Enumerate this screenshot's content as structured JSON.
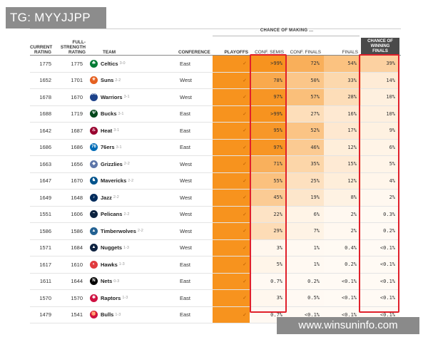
{
  "overlay_tag": "TG: MYYJJPP",
  "watermark": "www.winsuninfo.com",
  "header": {
    "group_label": "CHANCE OF MAKING ...",
    "current_rating": [
      "CURRENT",
      "RATING"
    ],
    "full_strength_rating": [
      "FULL-",
      "STRENGTH",
      "RATING"
    ],
    "team": "TEAM",
    "conference": "CONFERENCE",
    "playoffs": "PLAYOFFS",
    "conf_semis": "CONF. SEMIS",
    "conf_finals": "CONF. FINALS",
    "finals": "FINALS",
    "win_finals": [
      "CHANCE OF",
      "WINNING",
      "FINALS"
    ]
  },
  "check_mark": "✓",
  "colors": {
    "playoffs_fill": "#f7931e",
    "highlight_border": "#e0202b",
    "win_header_bg": "#4a4a4a"
  },
  "rows": [
    {
      "current": "1775",
      "full": "1775",
      "team": "Celtics",
      "record": "3-0",
      "conference": "East",
      "semis": ">99%",
      "semis_v": 99.5,
      "cfinals": "72%",
      "cfinals_v": 72,
      "finals": "54%",
      "finals_v": 54,
      "win": "39%",
      "win_v": 39,
      "logo_color": "#007a33",
      "logo_icon": "clover-icon"
    },
    {
      "current": "1652",
      "full": "1701",
      "team": "Suns",
      "record": "2-2",
      "conference": "West",
      "semis": "78%",
      "semis_v": 78,
      "cfinals": "50%",
      "cfinals_v": 50,
      "finals": "33%",
      "finals_v": 33,
      "win": "14%",
      "win_v": 14,
      "logo_color": "#e56020",
      "logo_icon": "sun-icon"
    },
    {
      "current": "1678",
      "full": "1670",
      "team": "Warriors",
      "record": "3-1",
      "conference": "West",
      "semis": "97%",
      "semis_v": 97,
      "cfinals": "57%",
      "cfinals_v": 57,
      "finals": "28%",
      "finals_v": 28,
      "win": "10%",
      "win_v": 10,
      "logo_color": "#1d428a",
      "logo_icon": "bridge-icon"
    },
    {
      "current": "1688",
      "full": "1719",
      "team": "Bucks",
      "record": "3-1",
      "conference": "East",
      "semis": ">99%",
      "semis_v": 99.5,
      "cfinals": "27%",
      "cfinals_v": 27,
      "finals": "16%",
      "finals_v": 16,
      "win": "10%",
      "win_v": 10,
      "logo_color": "#00471b",
      "logo_icon": "deer-icon"
    },
    {
      "current": "1642",
      "full": "1687",
      "team": "Heat",
      "record": "3-1",
      "conference": "East",
      "semis": "95%",
      "semis_v": 95,
      "cfinals": "52%",
      "cfinals_v": 52,
      "finals": "17%",
      "finals_v": 17,
      "win": "9%",
      "win_v": 9,
      "logo_color": "#98002e",
      "logo_icon": "flame-icon"
    },
    {
      "current": "1686",
      "full": "1686",
      "team": "76ers",
      "record": "3-1",
      "conference": "East",
      "semis": "97%",
      "semis_v": 97,
      "cfinals": "46%",
      "cfinals_v": 46,
      "finals": "12%",
      "finals_v": 12,
      "win": "6%",
      "win_v": 6,
      "logo_color": "#006bb6",
      "logo_icon": "seventy-six-icon"
    },
    {
      "current": "1663",
      "full": "1656",
      "team": "Grizzlies",
      "record": "2-2",
      "conference": "West",
      "semis": "71%",
      "semis_v": 71,
      "cfinals": "35%",
      "cfinals_v": 35,
      "finals": "15%",
      "finals_v": 15,
      "win": "5%",
      "win_v": 5,
      "logo_color": "#5d76a9",
      "logo_icon": "bear-icon"
    },
    {
      "current": "1647",
      "full": "1670",
      "team": "Mavericks",
      "record": "2-2",
      "conference": "West",
      "semis": "55%",
      "semis_v": 55,
      "cfinals": "25%",
      "cfinals_v": 25,
      "finals": "12%",
      "finals_v": 12,
      "win": "4%",
      "win_v": 4,
      "logo_color": "#00538c",
      "logo_icon": "horse-icon"
    },
    {
      "current": "1649",
      "full": "1648",
      "team": "Jazz",
      "record": "2-2",
      "conference": "West",
      "semis": "45%",
      "semis_v": 45,
      "cfinals": "19%",
      "cfinals_v": 19,
      "finals": "8%",
      "finals_v": 8,
      "win": "2%",
      "win_v": 2,
      "logo_color": "#002b5c",
      "logo_icon": "note-icon"
    },
    {
      "current": "1551",
      "full": "1606",
      "team": "Pelicans",
      "record": "2-2",
      "conference": "West",
      "semis": "22%",
      "semis_v": 22,
      "cfinals": "6%",
      "cfinals_v": 6,
      "finals": "2%",
      "finals_v": 2,
      "win": "0.3%",
      "win_v": 0.3,
      "logo_color": "#0c2340",
      "logo_icon": "pelican-icon"
    },
    {
      "current": "1586",
      "full": "1586",
      "team": "Timberwolves",
      "record": "2-2",
      "conference": "West",
      "semis": "29%",
      "semis_v": 29,
      "cfinals": "7%",
      "cfinals_v": 7,
      "finals": "2%",
      "finals_v": 2,
      "win": "0.2%",
      "win_v": 0.2,
      "logo_color": "#236192",
      "logo_icon": "wolf-icon"
    },
    {
      "current": "1571",
      "full": "1684",
      "team": "Nuggets",
      "record": "1-3",
      "conference": "West",
      "semis": "3%",
      "semis_v": 3,
      "cfinals": "1%",
      "cfinals_v": 1,
      "finals": "0.4%",
      "finals_v": 0.4,
      "win": "<0.1%",
      "win_v": 0.05,
      "logo_color": "#0e2240",
      "logo_icon": "mountain-icon"
    },
    {
      "current": "1617",
      "full": "1610",
      "team": "Hawks",
      "record": "1-3",
      "conference": "East",
      "semis": "5%",
      "semis_v": 5,
      "cfinals": "1%",
      "cfinals_v": 1,
      "finals": "0.2%",
      "finals_v": 0.2,
      "win": "<0.1%",
      "win_v": 0.05,
      "logo_color": "#e03a3e",
      "logo_icon": "hawk-icon"
    },
    {
      "current": "1611",
      "full": "1644",
      "team": "Nets",
      "record": "0-3",
      "conference": "East",
      "semis": "0.7%",
      "semis_v": 0.7,
      "cfinals": "0.2%",
      "cfinals_v": 0.2,
      "finals": "<0.1%",
      "finals_v": 0.05,
      "win": "<0.1%",
      "win_v": 0.05,
      "logo_color": "#000000",
      "logo_icon": "n-icon"
    },
    {
      "current": "1570",
      "full": "1570",
      "team": "Raptors",
      "record": "1-3",
      "conference": "East",
      "semis": "3%",
      "semis_v": 3,
      "cfinals": "0.5%",
      "cfinals_v": 0.5,
      "finals": "<0.1%",
      "finals_v": 0.05,
      "win": "<0.1%",
      "win_v": 0.05,
      "logo_color": "#ce1141",
      "logo_icon": "claw-icon"
    },
    {
      "current": "1479",
      "full": "1541",
      "team": "Bulls",
      "record": "1-3",
      "conference": "East",
      "semis": "0.7%",
      "semis_v": 0.7,
      "cfinals": "<0.1%",
      "cfinals_v": 0.05,
      "finals": "<0.1%",
      "finals_v": 0.05,
      "win": "<0.1%",
      "win_v": 0.05,
      "logo_color": "#ce1141",
      "logo_icon": "bull-icon"
    }
  ]
}
